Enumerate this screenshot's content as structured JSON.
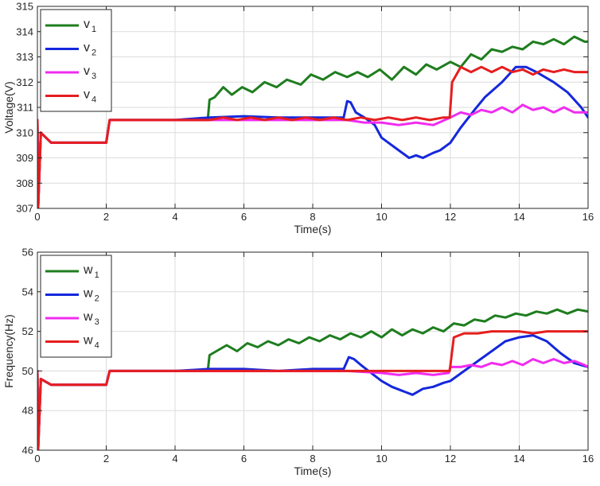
{
  "chart_data": [
    {
      "type": "line",
      "xlabel": "Time(s)",
      "ylabel": "Voltage(V)",
      "xlim": [
        0,
        16
      ],
      "ylim": [
        307,
        315
      ],
      "xticks": [
        0,
        2,
        4,
        6,
        8,
        10,
        12,
        14,
        16
      ],
      "yticks": [
        307,
        308,
        309,
        310,
        311,
        312,
        313,
        314,
        315
      ],
      "grid": true,
      "legend_position": "top-left",
      "series": [
        {
          "name": "v",
          "subscript": "1",
          "color": "#1e7d1e",
          "x": [
            0,
            0.02,
            0.1,
            0.4,
            1.0,
            2.0,
            2.1,
            3.0,
            4.0,
            4.95,
            5.0,
            5.15,
            5.4,
            5.65,
            5.95,
            6.25,
            6.6,
            6.95,
            7.25,
            7.65,
            7.95,
            8.3,
            8.65,
            9.0,
            9.3,
            9.6,
            9.95,
            10.3,
            10.65,
            11.0,
            11.3,
            11.6,
            12.0,
            12.3,
            12.6,
            12.9,
            13.2,
            13.5,
            13.8,
            14.1,
            14.4,
            14.7,
            15.0,
            15.3,
            15.6,
            15.9,
            16.0
          ],
          "y": [
            310.5,
            307.0,
            310.0,
            309.6,
            309.6,
            309.6,
            310.5,
            310.5,
            310.5,
            310.5,
            311.3,
            311.4,
            311.8,
            311.5,
            311.8,
            311.6,
            312.0,
            311.8,
            312.1,
            311.9,
            312.3,
            312.1,
            312.4,
            312.2,
            312.4,
            312.2,
            312.5,
            312.1,
            312.6,
            312.3,
            312.7,
            312.5,
            312.8,
            312.6,
            313.1,
            312.9,
            313.3,
            313.2,
            313.4,
            313.3,
            313.6,
            313.5,
            313.7,
            313.5,
            313.8,
            313.6,
            313.6
          ]
        },
        {
          "name": "v",
          "subscript": "2",
          "color": "#1428dc",
          "x": [
            0,
            0.02,
            0.1,
            0.4,
            1.0,
            2.0,
            2.1,
            3.0,
            4.0,
            5.0,
            6.0,
            7.0,
            8.0,
            8.9,
            9.0,
            9.1,
            9.25,
            9.5,
            9.8,
            10.0,
            10.2,
            10.5,
            10.8,
            11.0,
            11.2,
            11.5,
            11.7,
            12.0,
            12.3,
            12.7,
            13.0,
            13.5,
            13.9,
            14.2,
            14.5,
            15.0,
            15.4,
            15.8,
            16.0
          ],
          "y": [
            310.5,
            307.0,
            310.0,
            309.6,
            309.6,
            309.6,
            310.5,
            310.5,
            310.5,
            310.6,
            310.65,
            310.6,
            310.6,
            310.6,
            311.25,
            311.2,
            310.8,
            310.6,
            310.3,
            309.8,
            309.6,
            309.3,
            309.0,
            309.1,
            309.0,
            309.2,
            309.3,
            309.6,
            310.2,
            310.9,
            311.4,
            312.0,
            312.6,
            312.6,
            312.4,
            312.0,
            311.6,
            311.0,
            310.6
          ]
        },
        {
          "name": "v",
          "subscript": "3",
          "color": "#f02cf0",
          "x": [
            0,
            0.02,
            0.1,
            0.4,
            1.0,
            2.0,
            2.1,
            3.0,
            4.0,
            5.0,
            6.0,
            7.0,
            8.0,
            9.0,
            9.5,
            10.0,
            10.5,
            11.0,
            11.5,
            12.0,
            12.3,
            12.6,
            12.9,
            13.2,
            13.5,
            13.8,
            14.1,
            14.4,
            14.7,
            15.0,
            15.3,
            15.6,
            15.9,
            16.0
          ],
          "y": [
            310.5,
            307.0,
            310.0,
            309.6,
            309.6,
            309.6,
            310.5,
            310.5,
            310.5,
            310.5,
            310.5,
            310.5,
            310.5,
            310.5,
            310.4,
            310.4,
            310.3,
            310.4,
            310.3,
            310.6,
            310.8,
            310.7,
            310.9,
            310.8,
            311.0,
            310.8,
            311.1,
            310.9,
            311.0,
            310.8,
            311.0,
            310.8,
            310.8,
            310.8
          ]
        },
        {
          "name": "v",
          "subscript": "4",
          "color": "#e61e1e",
          "x": [
            0,
            0.02,
            0.1,
            0.4,
            1.0,
            2.0,
            2.1,
            3.0,
            4.0,
            5.0,
            5.4,
            5.8,
            6.2,
            6.6,
            7.0,
            7.4,
            7.8,
            8.2,
            8.6,
            9.0,
            9.4,
            9.8,
            10.2,
            10.6,
            11.0,
            11.4,
            11.8,
            11.98,
            12.05,
            12.3,
            12.6,
            12.9,
            13.2,
            13.5,
            13.8,
            14.1,
            14.4,
            14.7,
            15.0,
            15.3,
            15.6,
            16.0
          ],
          "y": [
            310.5,
            307.0,
            310.0,
            309.6,
            309.6,
            309.6,
            310.5,
            310.5,
            310.5,
            310.5,
            310.6,
            310.5,
            310.6,
            310.5,
            310.6,
            310.5,
            310.6,
            310.5,
            310.6,
            310.5,
            310.6,
            310.5,
            310.6,
            310.5,
            310.6,
            310.5,
            310.6,
            310.6,
            312.0,
            312.6,
            312.4,
            312.6,
            312.4,
            312.6,
            312.4,
            312.5,
            312.3,
            312.5,
            312.4,
            312.5,
            312.4,
            312.4
          ]
        }
      ]
    },
    {
      "type": "line",
      "xlabel": "Time(s)",
      "ylabel": "Frequency(Hz)",
      "xlim": [
        0,
        16
      ],
      "ylim": [
        46,
        56
      ],
      "xticks": [
        0,
        2,
        4,
        6,
        8,
        10,
        12,
        14,
        16
      ],
      "yticks": [
        46,
        48,
        50,
        52,
        54,
        56
      ],
      "grid": true,
      "legend_position": "top-left",
      "series": [
        {
          "name": "w",
          "subscript": "1",
          "color": "#1e7d1e",
          "x": [
            0,
            0.02,
            0.1,
            0.4,
            1.0,
            2.0,
            2.1,
            3.0,
            4.0,
            4.95,
            5.0,
            5.2,
            5.5,
            5.8,
            6.1,
            6.4,
            6.7,
            7.0,
            7.3,
            7.6,
            7.9,
            8.2,
            8.5,
            8.8,
            9.1,
            9.4,
            9.7,
            10.0,
            10.3,
            10.6,
            10.9,
            11.2,
            11.5,
            11.8,
            12.1,
            12.4,
            12.7,
            13.0,
            13.3,
            13.6,
            13.9,
            14.2,
            14.5,
            14.8,
            15.1,
            15.4,
            15.7,
            16.0
          ],
          "y": [
            50.0,
            46.0,
            49.6,
            49.3,
            49.3,
            49.3,
            50.0,
            50.0,
            50.0,
            50.0,
            50.8,
            51.0,
            51.3,
            51.0,
            51.4,
            51.2,
            51.5,
            51.3,
            51.6,
            51.4,
            51.7,
            51.5,
            51.8,
            51.6,
            51.9,
            51.7,
            52.0,
            51.7,
            52.1,
            51.8,
            52.1,
            51.9,
            52.2,
            52.0,
            52.4,
            52.3,
            52.6,
            52.5,
            52.8,
            52.7,
            52.9,
            52.8,
            53.0,
            52.9,
            53.1,
            52.9,
            53.1,
            53.0
          ]
        },
        {
          "name": "w",
          "subscript": "2",
          "color": "#1428dc",
          "x": [
            0,
            0.02,
            0.1,
            0.4,
            1.0,
            2.0,
            2.1,
            3.0,
            4.0,
            5.0,
            6.0,
            7.0,
            8.0,
            8.9,
            9.05,
            9.2,
            9.4,
            9.7,
            10.0,
            10.3,
            10.6,
            10.9,
            11.2,
            11.5,
            11.8,
            12.0,
            12.4,
            12.8,
            13.2,
            13.6,
            14.0,
            14.4,
            14.8,
            15.2,
            15.6,
            16.0
          ],
          "y": [
            50.0,
            46.0,
            49.6,
            49.3,
            49.3,
            49.3,
            50.0,
            50.0,
            50.0,
            50.1,
            50.1,
            50.0,
            50.1,
            50.1,
            50.7,
            50.6,
            50.3,
            49.9,
            49.5,
            49.2,
            49.0,
            48.8,
            49.1,
            49.2,
            49.4,
            49.5,
            50.0,
            50.5,
            51.0,
            51.5,
            51.7,
            51.8,
            51.5,
            50.9,
            50.4,
            50.2
          ]
        },
        {
          "name": "w",
          "subscript": "3",
          "color": "#f02cf0",
          "x": [
            0,
            0.02,
            0.1,
            0.4,
            1.0,
            2.0,
            2.1,
            3.0,
            4.0,
            5.0,
            6.0,
            7.0,
            8.0,
            9.0,
            10.0,
            10.5,
            11.0,
            11.5,
            11.95,
            12.0,
            12.3,
            12.6,
            12.9,
            13.2,
            13.5,
            13.8,
            14.1,
            14.4,
            14.7,
            15.0,
            15.3,
            15.6,
            15.9,
            16.0
          ],
          "y": [
            50.0,
            46.0,
            49.6,
            49.3,
            49.3,
            49.3,
            50.0,
            50.0,
            50.0,
            50.0,
            50.0,
            50.0,
            50.0,
            50.0,
            49.9,
            49.8,
            49.9,
            49.8,
            49.9,
            50.2,
            50.2,
            50.3,
            50.2,
            50.4,
            50.3,
            50.5,
            50.3,
            50.6,
            50.4,
            50.6,
            50.4,
            50.5,
            50.3,
            50.2
          ]
        },
        {
          "name": "w",
          "subscript": "4",
          "color": "#e61e1e",
          "x": [
            0,
            0.02,
            0.1,
            0.4,
            1.0,
            2.0,
            2.1,
            3.0,
            4.0,
            5.0,
            5.4,
            5.8,
            6.2,
            6.6,
            7.0,
            7.4,
            7.8,
            8.2,
            8.6,
            9.0,
            9.4,
            9.8,
            10.2,
            10.6,
            11.0,
            11.4,
            11.8,
            11.98,
            12.1,
            12.4,
            12.8,
            13.2,
            13.6,
            14.0,
            14.4,
            14.8,
            15.2,
            15.6,
            16.0
          ],
          "y": [
            50.0,
            46.0,
            49.6,
            49.3,
            49.3,
            49.3,
            50.0,
            50.0,
            50.0,
            50.0,
            50.0,
            50.0,
            50.0,
            50.0,
            50.0,
            50.0,
            50.0,
            50.0,
            50.0,
            50.0,
            50.0,
            50.0,
            50.0,
            50.0,
            50.0,
            50.0,
            50.0,
            50.0,
            51.7,
            51.9,
            51.9,
            52.0,
            52.0,
            52.0,
            51.9,
            52.0,
            52.0,
            52.0,
            52.0
          ]
        }
      ]
    }
  ]
}
